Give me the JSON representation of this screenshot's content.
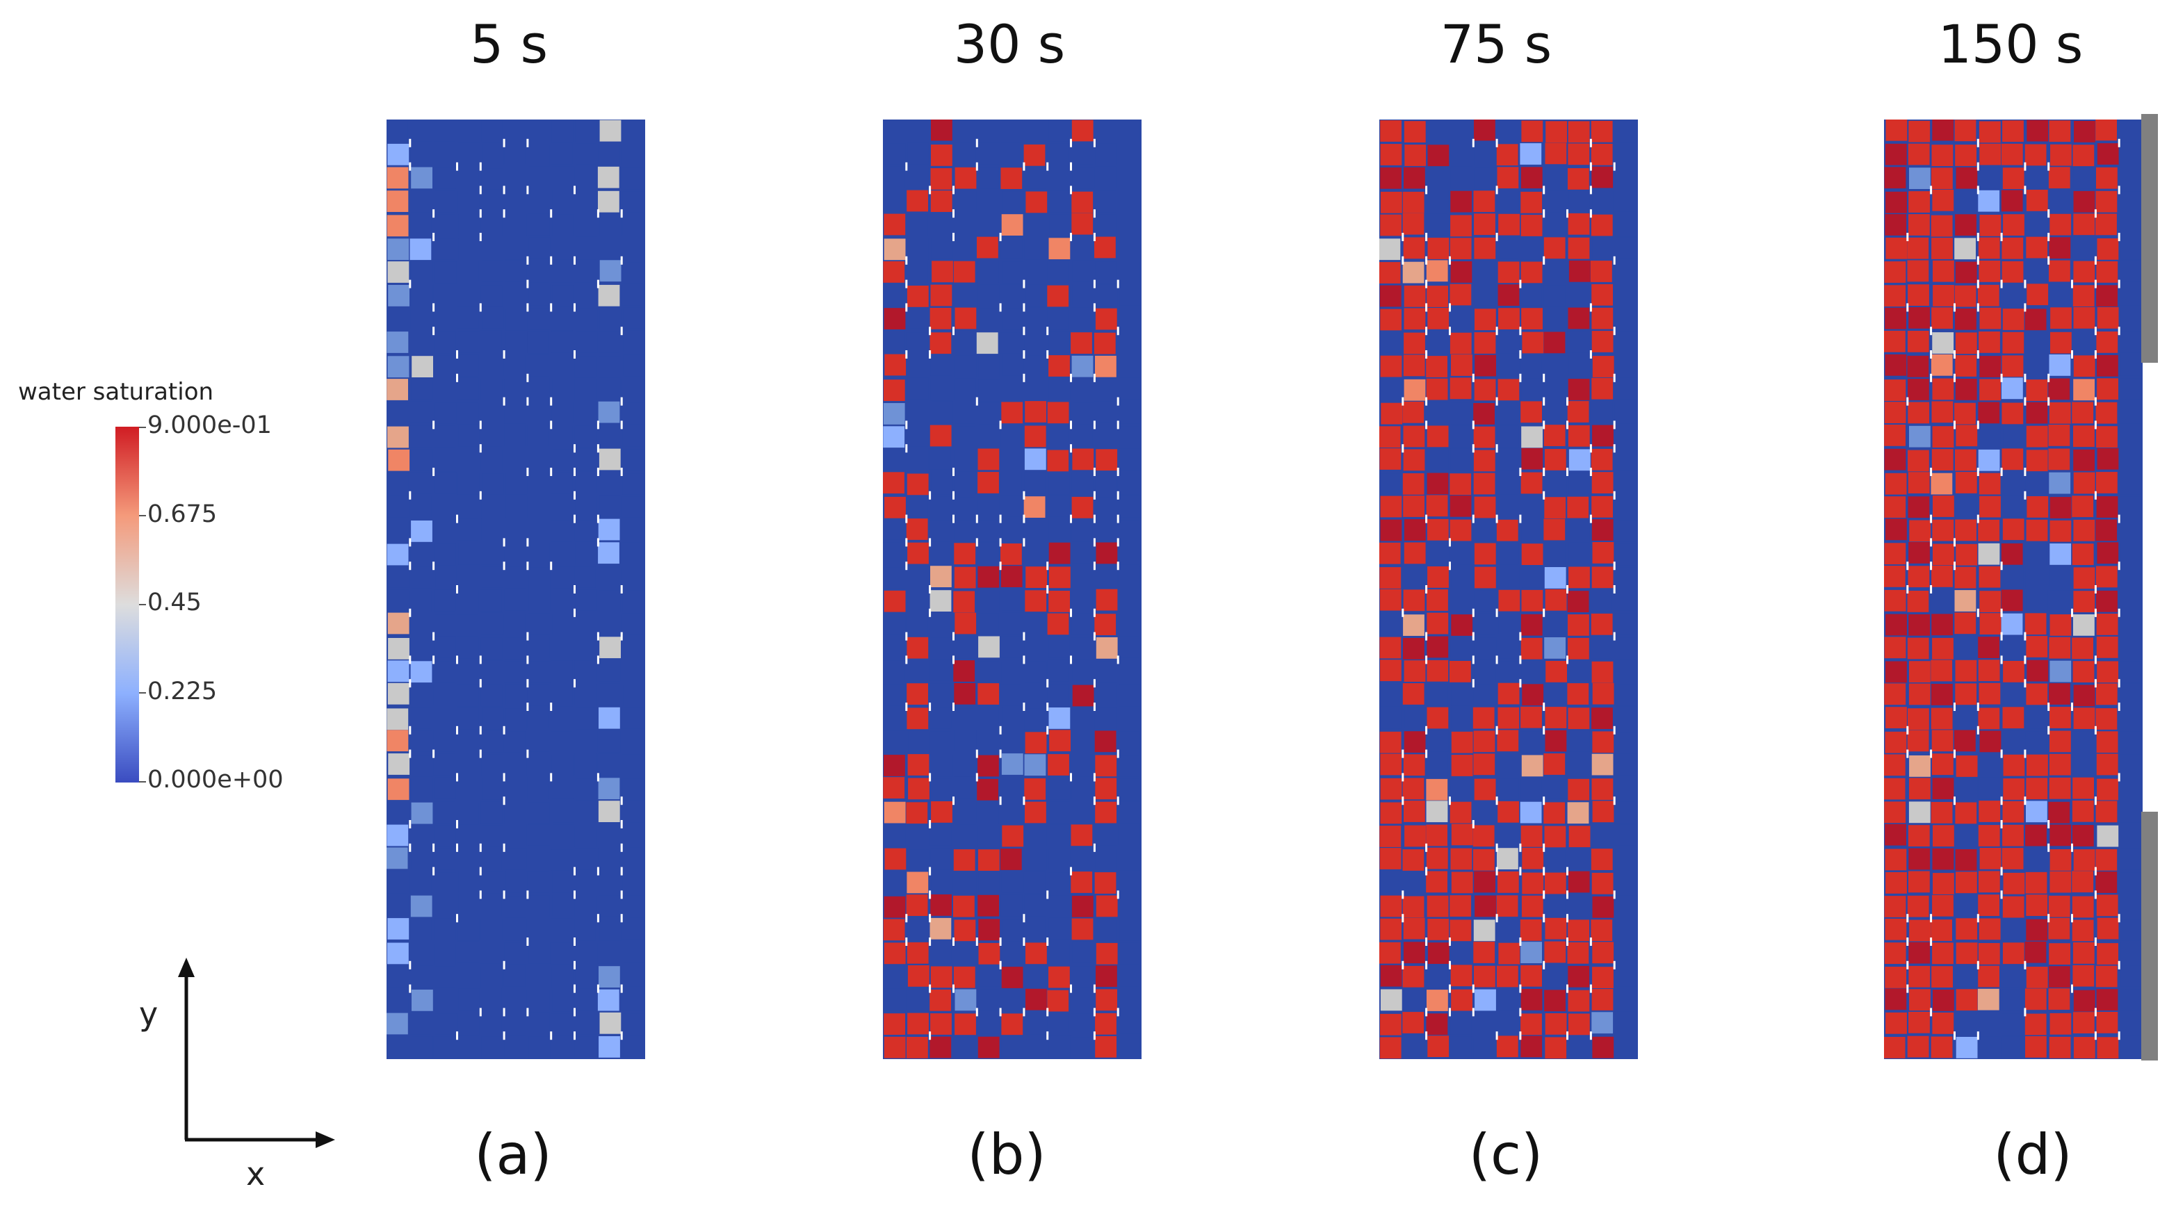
{
  "panels": [
    {
      "time_label": "5 s",
      "panel_label": "(a)",
      "fill": 0.0
    },
    {
      "time_label": "30 s",
      "panel_label": "(b)",
      "fill": 0.33
    },
    {
      "time_label": "75 s",
      "panel_label": "(c)",
      "fill": 0.66
    },
    {
      "time_label": "150 s",
      "panel_label": "(d)",
      "fill": 0.85
    }
  ],
  "colorbar": {
    "title": "water saturation",
    "ticks": [
      "9.000e-01",
      "0.675",
      "0.45",
      "0.225",
      "0.000e+00"
    ],
    "min": 0.0,
    "max": 0.9,
    "colors": [
      "#3a4cc0",
      "#8db0fe",
      "#dddddd",
      "#f49a7b",
      "#d01c23"
    ]
  },
  "axes": {
    "y_label": "y",
    "x_label": "x"
  },
  "boundary_bar_color": "#808080"
}
